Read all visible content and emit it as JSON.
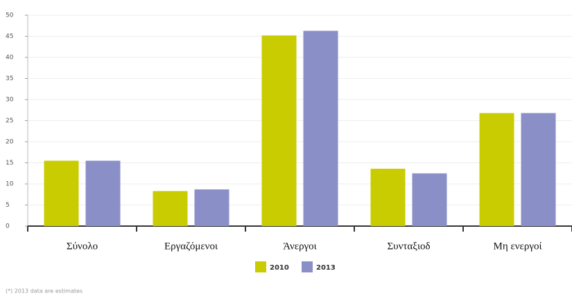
{
  "chart_data": {
    "type": "bar",
    "categories": [
      "Σύνολο",
      "Εργαζόμενοι",
      "Άνεργοι",
      "Συνταξιοδ",
      "Μη ενεργοί"
    ],
    "series": [
      {
        "name": "2010",
        "color": "#c8cc00",
        "values": [
          15.5,
          8.3,
          45.2,
          13.6,
          26.8
        ]
      },
      {
        "name": "2013",
        "color": "#8b8fc8",
        "values": [
          15.5,
          8.7,
          46.3,
          12.5,
          26.8
        ]
      }
    ],
    "ylim": [
      0,
      50
    ],
    "yticks": [
      0,
      5,
      10,
      15,
      20,
      25,
      30,
      35,
      40,
      45,
      50
    ],
    "grid": true,
    "footnote": "(*) 2013 data are estimates"
  }
}
